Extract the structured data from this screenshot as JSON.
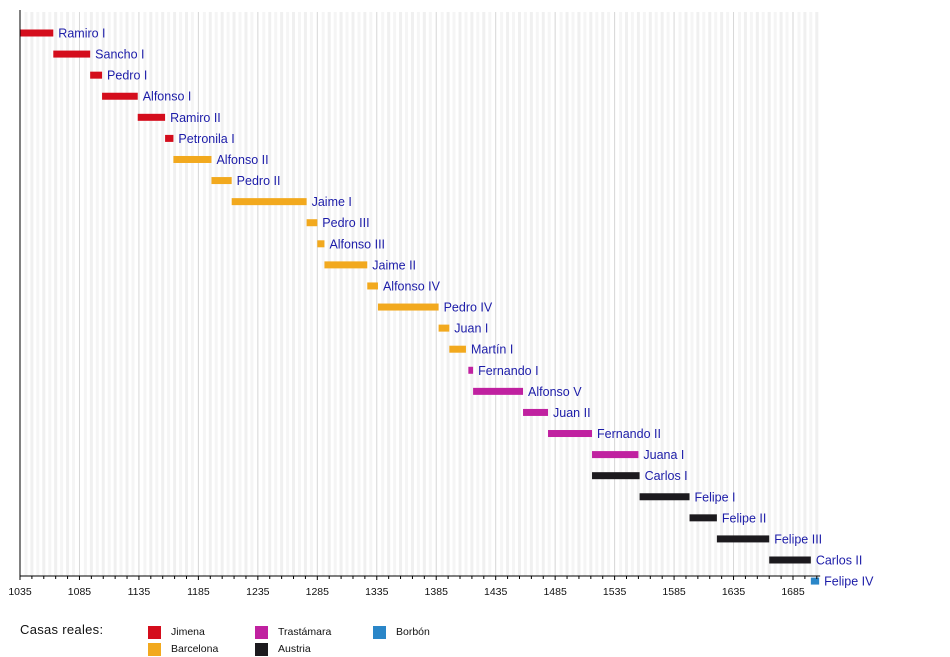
{
  "chart_data": {
    "type": "bar",
    "subtype": "timeline-gantt",
    "title": "",
    "xlabel": "",
    "ylabel": "",
    "xlim": [
      1035,
      1707
    ],
    "xticks": [
      1035,
      1085,
      1135,
      1185,
      1235,
      1285,
      1335,
      1385,
      1435,
      1485,
      1535,
      1585,
      1635,
      1685
    ],
    "minor_tick_step": 10,
    "grid": true,
    "legend_position": "bottom",
    "legend_title": "Casas reales:",
    "houses": [
      {
        "name": "Jimena",
        "color": "#d40d1c"
      },
      {
        "name": "Barcelona",
        "color": "#f2a91e"
      },
      {
        "name": "Trastámara",
        "color": "#c021a0"
      },
      {
        "name": "Austria",
        "color": "#1c1a1e"
      },
      {
        "name": "Borbón",
        "color": "#2a86c8"
      }
    ],
    "reigns": [
      {
        "name": "Ramiro I",
        "start": 1035,
        "end": 1063,
        "house": "Jimena"
      },
      {
        "name": "Sancho I",
        "start": 1063,
        "end": 1094,
        "house": "Jimena"
      },
      {
        "name": "Pedro I",
        "start": 1094,
        "end": 1104,
        "house": "Jimena"
      },
      {
        "name": "Alfonso I",
        "start": 1104,
        "end": 1134,
        "house": "Jimena"
      },
      {
        "name": "Ramiro II",
        "start": 1134,
        "end": 1157,
        "house": "Jimena"
      },
      {
        "name": "Petronila I",
        "start": 1157,
        "end": 1164,
        "house": "Jimena"
      },
      {
        "name": "Alfonso II",
        "start": 1164,
        "end": 1196,
        "house": "Barcelona"
      },
      {
        "name": "Pedro II",
        "start": 1196,
        "end": 1213,
        "house": "Barcelona"
      },
      {
        "name": "Jaime I",
        "start": 1213,
        "end": 1276,
        "house": "Barcelona"
      },
      {
        "name": "Pedro III",
        "start": 1276,
        "end": 1285,
        "house": "Barcelona"
      },
      {
        "name": "Alfonso III",
        "start": 1285,
        "end": 1291,
        "house": "Barcelona"
      },
      {
        "name": "Jaime II",
        "start": 1291,
        "end": 1327,
        "house": "Barcelona"
      },
      {
        "name": "Alfonso IV",
        "start": 1327,
        "end": 1336,
        "house": "Barcelona"
      },
      {
        "name": "Pedro IV",
        "start": 1336,
        "end": 1387,
        "house": "Barcelona"
      },
      {
        "name": "Juan I",
        "start": 1387,
        "end": 1396,
        "house": "Barcelona"
      },
      {
        "name": "Martín I",
        "start": 1396,
        "end": 1410,
        "house": "Barcelona"
      },
      {
        "name": "Fernando I",
        "start": 1412,
        "end": 1416,
        "house": "Trastámara"
      },
      {
        "name": "Alfonso V",
        "start": 1416,
        "end": 1458,
        "house": "Trastámara"
      },
      {
        "name": "Juan II",
        "start": 1458,
        "end": 1479,
        "house": "Trastámara"
      },
      {
        "name": "Fernando II",
        "start": 1479,
        "end": 1516,
        "house": "Trastámara"
      },
      {
        "name": "Juana I",
        "start": 1516,
        "end": 1555,
        "house": "Trastámara"
      },
      {
        "name": "Carlos I",
        "start": 1516,
        "end": 1556,
        "house": "Austria"
      },
      {
        "name": "Felipe I",
        "start": 1556,
        "end": 1598,
        "house": "Austria"
      },
      {
        "name": "Felipe II",
        "start": 1598,
        "end": 1621,
        "house": "Austria"
      },
      {
        "name": "Felipe III",
        "start": 1621,
        "end": 1665,
        "house": "Austria"
      },
      {
        "name": "Carlos II",
        "start": 1665,
        "end": 1700,
        "house": "Austria"
      },
      {
        "name": "Felipe IV",
        "start": 1700,
        "end": 1707,
        "house": "Borbón"
      }
    ]
  }
}
